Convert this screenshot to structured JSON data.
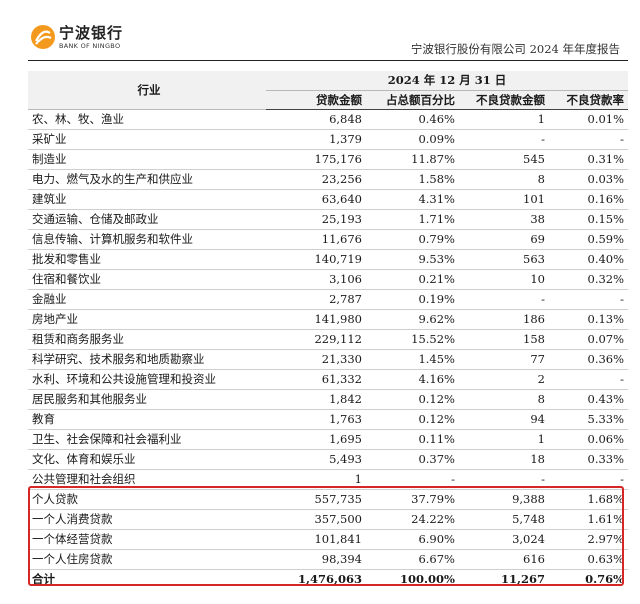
{
  "header": {
    "brand_cn": "宁波银行",
    "brand_en": "BANK OF NINGBO",
    "report_title": "宁波银行股份有限公司 2024 年年度报告"
  },
  "table": {
    "industry_header": "行业",
    "period_header": "2024 年 12 月 31 日",
    "columns": [
      "贷款金额",
      "占总额百分比",
      "不良贷款金额",
      "不良贷款率"
    ],
    "rows": [
      {
        "industry": "农、林、牧、渔业",
        "amount": "6,848",
        "pct": "0.46%",
        "npl": "1",
        "rate": "0.01%"
      },
      {
        "industry": "采矿业",
        "amount": "1,379",
        "pct": "0.09%",
        "npl": "-",
        "rate": "-"
      },
      {
        "industry": "制造业",
        "amount": "175,176",
        "pct": "11.87%",
        "npl": "545",
        "rate": "0.31%"
      },
      {
        "industry": "电力、燃气及水的生产和供应业",
        "amount": "23,256",
        "pct": "1.58%",
        "npl": "8",
        "rate": "0.03%"
      },
      {
        "industry": "建筑业",
        "amount": "63,640",
        "pct": "4.31%",
        "npl": "101",
        "rate": "0.16%"
      },
      {
        "industry": "交通运输、仓储及邮政业",
        "amount": "25,193",
        "pct": "1.71%",
        "npl": "38",
        "rate": "0.15%"
      },
      {
        "industry": "信息传输、计算机服务和软件业",
        "amount": "11,676",
        "pct": "0.79%",
        "npl": "69",
        "rate": "0.59%"
      },
      {
        "industry": "批发和零售业",
        "amount": "140,719",
        "pct": "9.53%",
        "npl": "563",
        "rate": "0.40%"
      },
      {
        "industry": "住宿和餐饮业",
        "amount": "3,106",
        "pct": "0.21%",
        "npl": "10",
        "rate": "0.32%"
      },
      {
        "industry": "金融业",
        "amount": "2,787",
        "pct": "0.19%",
        "npl": "-",
        "rate": "-"
      },
      {
        "industry": "房地产业",
        "amount": "141,980",
        "pct": "9.62%",
        "npl": "186",
        "rate": "0.13%"
      },
      {
        "industry": "租赁和商务服务业",
        "amount": "229,112",
        "pct": "15.52%",
        "npl": "158",
        "rate": "0.07%"
      },
      {
        "industry": "科学研究、技术服务和地质勘察业",
        "amount": "21,330",
        "pct": "1.45%",
        "npl": "77",
        "rate": "0.36%"
      },
      {
        "industry": "水利、环境和公共设施管理和投资业",
        "amount": "61,332",
        "pct": "4.16%",
        "npl": "2",
        "rate": "-"
      },
      {
        "industry": "居民服务和其他服务业",
        "amount": "1,842",
        "pct": "0.12%",
        "npl": "8",
        "rate": "0.43%"
      },
      {
        "industry": "教育",
        "amount": "1,763",
        "pct": "0.12%",
        "npl": "94",
        "rate": "5.33%"
      },
      {
        "industry": "卫生、社会保障和社会福利业",
        "amount": "1,695",
        "pct": "0.11%",
        "npl": "1",
        "rate": "0.06%"
      },
      {
        "industry": "文化、体育和娱乐业",
        "amount": "5,493",
        "pct": "0.37%",
        "npl": "18",
        "rate": "0.33%"
      },
      {
        "industry": "公共管理和社会组织",
        "amount": "1",
        "pct": "-",
        "npl": "-",
        "rate": "-"
      },
      {
        "industry": "个人贷款",
        "amount": "557,735",
        "pct": "37.79%",
        "npl": "9,388",
        "rate": "1.68%"
      },
      {
        "industry": "一个人消费贷款",
        "amount": "357,500",
        "pct": "24.22%",
        "npl": "5,748",
        "rate": "1.61%"
      },
      {
        "industry": "一个体经营贷款",
        "amount": "101,841",
        "pct": "6.90%",
        "npl": "3,024",
        "rate": "2.97%"
      },
      {
        "industry": "一个人住房贷款",
        "amount": "98,394",
        "pct": "6.67%",
        "npl": "616",
        "rate": "0.63%"
      }
    ],
    "total": {
      "industry": "合计",
      "amount": "1,476,063",
      "pct": "100.00%",
      "npl": "11,267",
      "rate": "0.76%"
    }
  },
  "colors": {
    "highlight_border": "#d62626",
    "logo_orange": "#f39a1e",
    "header_bg": "#f1f1f1"
  }
}
